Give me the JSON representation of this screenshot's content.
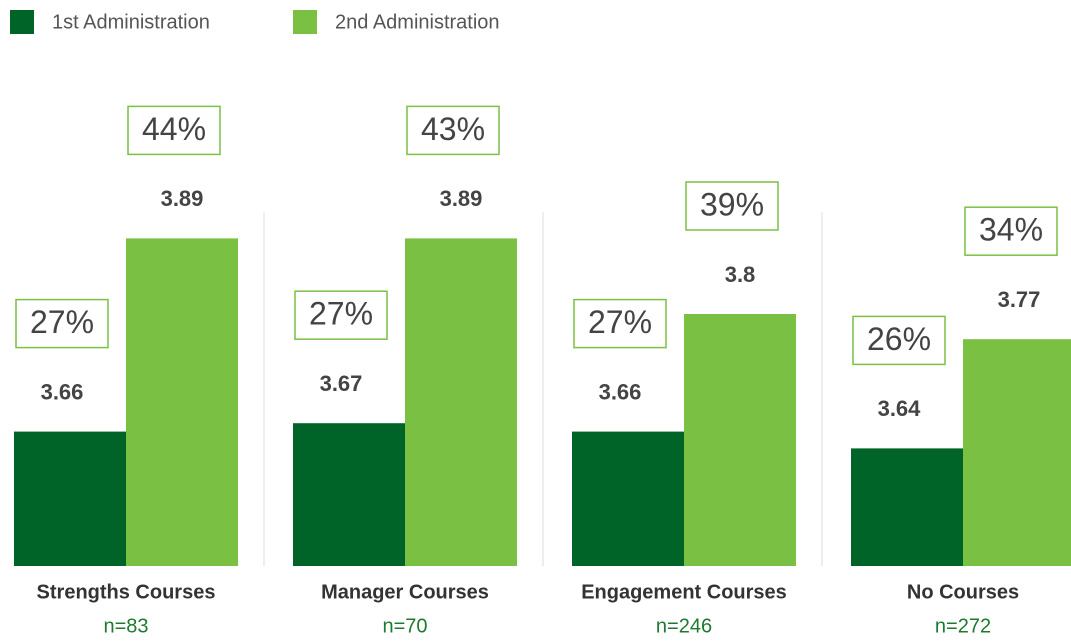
{
  "chart_data": {
    "type": "bar",
    "categories": [
      "Strengths Courses",
      "Manager Courses",
      "Engagement Courses",
      "No Courses"
    ],
    "sample_sizes": [
      "n=83",
      "n=70",
      "n=246",
      "n=272"
    ],
    "series": [
      {
        "name": "1st Administration",
        "color": "#006428",
        "values": [
          3.66,
          3.67,
          3.66,
          3.64
        ],
        "percent_labels": [
          "27%",
          "27%",
          "27%",
          "26%"
        ]
      },
      {
        "name": "2nd Administration",
        "color": "#7ac143",
        "values": [
          3.89,
          3.89,
          3.8,
          3.77
        ],
        "percent_labels": [
          "44%",
          "43%",
          "39%",
          "34%"
        ]
      }
    ],
    "ylim": [
      3.5,
      4.0
    ]
  }
}
